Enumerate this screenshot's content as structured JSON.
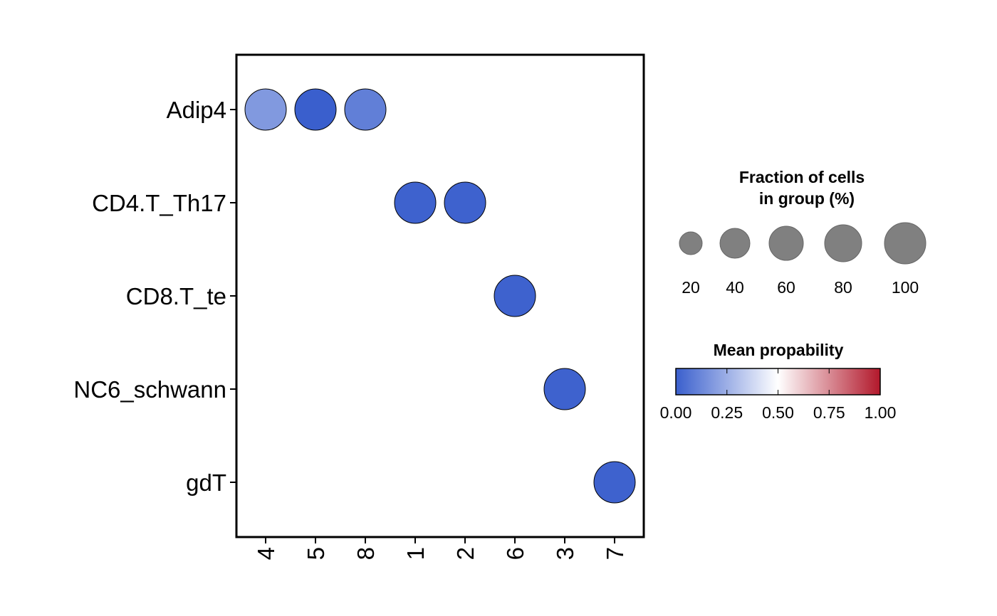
{
  "chart_data": {
    "type": "dotplot",
    "x_categories": [
      "4",
      "5",
      "8",
      "1",
      "2",
      "6",
      "3",
      "7"
    ],
    "y_categories": [
      "Adip4",
      "CD4.T_Th17",
      "CD8.T_te",
      "NC6_schwann",
      "gdT"
    ],
    "points": [
      {
        "y": "Adip4",
        "x": "4",
        "fraction": 100,
        "mean": 0.18
      },
      {
        "y": "Adip4",
        "x": "5",
        "fraction": 100,
        "mean": 0.0
      },
      {
        "y": "Adip4",
        "x": "8",
        "fraction": 100,
        "mean": 0.1
      },
      {
        "y": "CD4.T_Th17",
        "x": "1",
        "fraction": 100,
        "mean": 0.01
      },
      {
        "y": "CD4.T_Th17",
        "x": "2",
        "fraction": 100,
        "mean": 0.01
      },
      {
        "y": "CD8.T_te",
        "x": "6",
        "fraction": 100,
        "mean": 0.01
      },
      {
        "y": "NC6_schwann",
        "x": "3",
        "fraction": 100,
        "mean": 0.01
      },
      {
        "y": "gdT",
        "x": "7",
        "fraction": 100,
        "mean": 0.01
      }
    ],
    "size_legend": {
      "title_line1": "Fraction of cells",
      "title_line2": "in group (%)",
      "values": [
        20,
        40,
        60,
        80,
        100
      ],
      "labels": [
        "20",
        "40",
        "60",
        "80",
        "100"
      ],
      "color": "#808080"
    },
    "color_legend": {
      "title": "Mean propability",
      "range": [
        0,
        1
      ],
      "ticks": [
        "0.00",
        "0.25",
        "0.50",
        "0.75",
        "1.00"
      ],
      "colors": {
        "low": "#3A5FCD",
        "mid": "#FFFFFF",
        "high": "#B2182B"
      }
    }
  }
}
